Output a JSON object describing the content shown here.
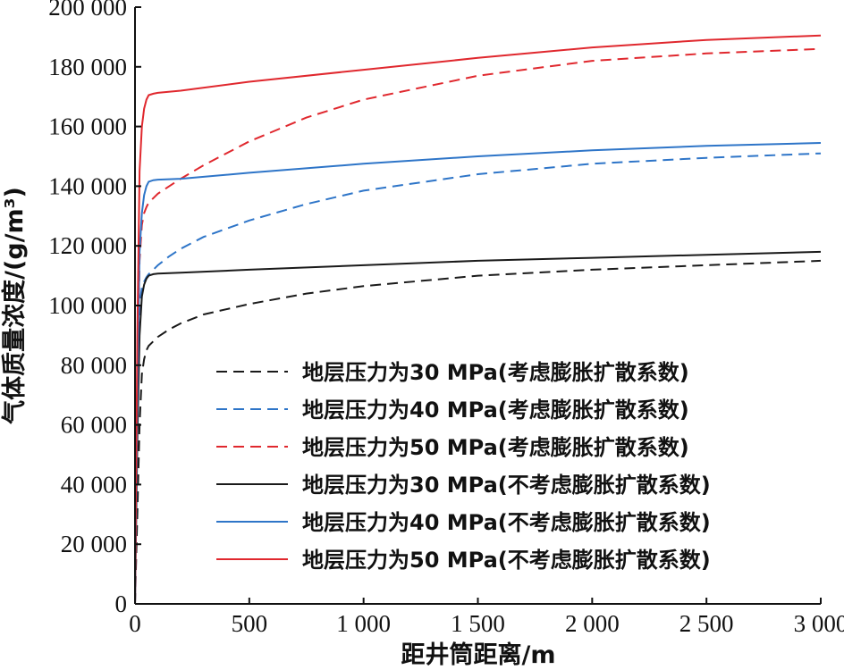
{
  "chart_data": {
    "type": "line",
    "title": "",
    "xlabel": "距井筒距离/m",
    "ylabel": "气体质量浓度/(g/m³)",
    "xlim": [
      0,
      3000
    ],
    "ylim": [
      0,
      200000
    ],
    "x_ticks": [
      0,
      500,
      1000,
      1500,
      2000,
      2500,
      3000
    ],
    "x_tick_labels": [
      "0",
      "500",
      "1 000",
      "1 500",
      "2 000",
      "2 500",
      "3 000"
    ],
    "y_ticks": [
      0,
      20000,
      40000,
      60000,
      80000,
      100000,
      120000,
      140000,
      160000,
      180000,
      200000
    ],
    "y_tick_labels": [
      "0",
      "20 000",
      "40 000",
      "60 000",
      "80 000",
      "100 000",
      "120 000",
      "140 000",
      "160 000",
      "180 000",
      "200 000"
    ],
    "grid": false,
    "legend_position": "bottom-right",
    "series": [
      {
        "name": "地层压力为30 MPa(考虑膨胀扩散系数)",
        "color": "#1a1a1a",
        "dash": true,
        "x": [
          0,
          10,
          20,
          30,
          40,
          50,
          60,
          80,
          100,
          150,
          200,
          300,
          500,
          750,
          1000,
          1500,
          2000,
          2500,
          3000
        ],
        "y": [
          0,
          30000,
          60000,
          77000,
          82000,
          85000,
          86500,
          88000,
          89500,
          92000,
          94000,
          97000,
          100500,
          104000,
          106500,
          110000,
          112000,
          113500,
          115000
        ]
      },
      {
        "name": "地层压力为40 MPa(考虑膨胀扩散系数)",
        "color": "#2e75c8",
        "dash": true,
        "x": [
          0,
          10,
          20,
          30,
          40,
          50,
          60,
          80,
          100,
          150,
          200,
          300,
          500,
          750,
          1000,
          1500,
          2000,
          2500,
          3000
        ],
        "y": [
          0,
          60000,
          100000,
          106000,
          108000,
          109500,
          110500,
          112000,
          113500,
          116500,
          119000,
          123000,
          128500,
          134000,
          138500,
          144000,
          147500,
          149500,
          151000
        ]
      },
      {
        "name": "地层压力为50 MPa(考虑膨胀扩散系数)",
        "color": "#e0282e",
        "dash": true,
        "x": [
          0,
          10,
          20,
          30,
          40,
          50,
          60,
          80,
          100,
          150,
          200,
          300,
          500,
          750,
          1000,
          1500,
          2000,
          2500,
          3000
        ],
        "y": [
          0,
          70000,
          115000,
          127000,
          131000,
          133000,
          134500,
          136000,
          137500,
          140000,
          142500,
          147000,
          155000,
          163000,
          169000,
          177000,
          182000,
          184500,
          186000
        ]
      },
      {
        "name": "地层压力为30 MPa(不考虑膨胀扩散系数)",
        "color": "#1a1a1a",
        "dash": false,
        "x": [
          0,
          10,
          20,
          30,
          40,
          50,
          60,
          80,
          100,
          200,
          500,
          1000,
          1500,
          2000,
          2500,
          3000
        ],
        "y": [
          0,
          55000,
          90000,
          103000,
          107000,
          109000,
          110000,
          110500,
          110700,
          111000,
          112000,
          113500,
          115000,
          116000,
          117000,
          118000
        ]
      },
      {
        "name": "地层压力为40 MPa(不考虑膨胀扩散系数)",
        "color": "#2e75c8",
        "dash": false,
        "x": [
          0,
          10,
          20,
          30,
          40,
          50,
          60,
          80,
          100,
          200,
          500,
          1000,
          1500,
          2000,
          2500,
          3000
        ],
        "y": [
          0,
          70000,
          118000,
          131000,
          137000,
          140000,
          141500,
          142000,
          142200,
          142500,
          144500,
          147500,
          150000,
          152000,
          153500,
          154500
        ]
      },
      {
        "name": "地层压力为50 MPa(不考虑膨胀扩散系数)",
        "color": "#e0282e",
        "dash": false,
        "x": [
          0,
          10,
          20,
          30,
          40,
          50,
          60,
          80,
          100,
          200,
          500,
          1000,
          1500,
          2000,
          2500,
          3000
        ],
        "y": [
          0,
          90000,
          145000,
          160000,
          166000,
          169000,
          170500,
          171000,
          171300,
          172000,
          175000,
          179000,
          183000,
          186500,
          189000,
          190500
        ]
      }
    ]
  }
}
